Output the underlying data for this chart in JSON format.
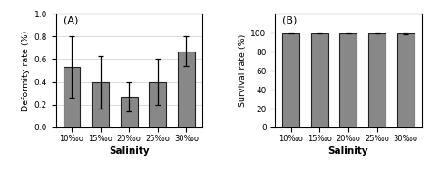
{
  "categories": [
    "10‰o",
    "15‰o",
    "20‰o",
    "25‰o",
    "30‰o"
  ],
  "deformity_values": [
    0.53,
    0.4,
    0.27,
    0.4,
    0.67
  ],
  "deformity_errors": [
    0.27,
    0.23,
    0.13,
    0.2,
    0.13
  ],
  "survival_values": [
    99.5,
    99.5,
    99.5,
    99.5,
    99.0
  ],
  "survival_errors": [
    0.5,
    0.5,
    0.5,
    0.8,
    0.8
  ],
  "bar_color": "#888888",
  "bar_edgecolor": "#222222",
  "background_color": "#ffffff",
  "deformity_ylabel": "Deformity rate (%)",
  "survival_ylabel": "Survival rate (%)",
  "xlabel": "Salinity",
  "deformity_ylim": [
    0.0,
    1.0
  ],
  "deformity_yticks": [
    0.0,
    0.2,
    0.4,
    0.6,
    0.8,
    1.0
  ],
  "survival_ylim": [
    0,
    120
  ],
  "survival_yticks": [
    0,
    20,
    40,
    60,
    80,
    100
  ],
  "label_A": "(A)",
  "label_B": "(B)"
}
